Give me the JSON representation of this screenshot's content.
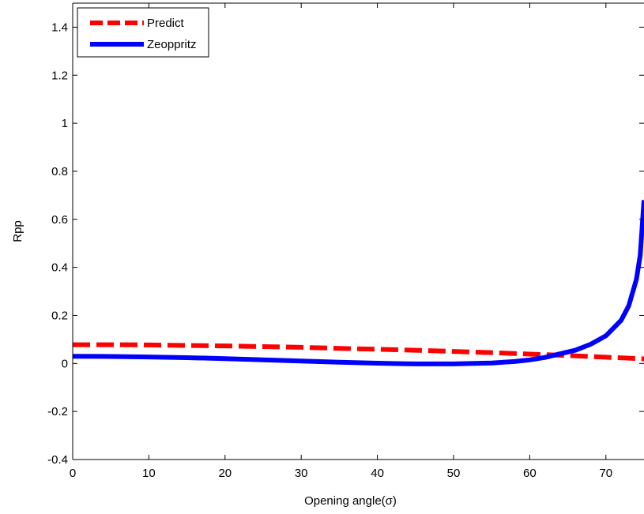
{
  "chart_data": {
    "type": "line",
    "title": "",
    "xlabel": "Opening angle(σ)",
    "ylabel": "Rpp",
    "xlim": [
      0,
      75
    ],
    "ylim": [
      -0.4,
      1.5
    ],
    "xticks": [
      0,
      10,
      20,
      30,
      40,
      50,
      60,
      70
    ],
    "yticks": [
      -0.4,
      -0.2,
      0,
      0.2,
      0.4,
      0.6,
      0.8,
      1,
      1.2,
      1.4
    ],
    "xtick_labels": [
      "0",
      "10",
      "20",
      "30",
      "40",
      "50",
      "60",
      "70"
    ],
    "ytick_labels": [
      "-0.4",
      "-0.2",
      "0",
      "0.2",
      "0.4",
      "0.6",
      "0.8",
      "1",
      "1.2",
      "1.4"
    ],
    "grid": false,
    "legend_position": "top-left",
    "series": [
      {
        "name": "Predict",
        "color": "#ff0000",
        "style": "dashed",
        "x": [
          0,
          5,
          10,
          15,
          20,
          25,
          30,
          35,
          40,
          45,
          50,
          55,
          60,
          65,
          70,
          75
        ],
        "y": [
          0.078,
          0.078,
          0.077,
          0.075,
          0.073,
          0.07,
          0.067,
          0.063,
          0.059,
          0.055,
          0.05,
          0.045,
          0.039,
          0.033,
          0.026,
          0.019
        ]
      },
      {
        "name": "Zeoppritz",
        "color": "#0000ff",
        "style": "solid",
        "x": [
          0,
          5,
          10,
          15,
          20,
          25,
          30,
          35,
          40,
          45,
          50,
          55,
          58,
          60,
          62,
          64,
          66,
          68,
          70,
          72,
          73,
          74,
          74.5,
          75
        ],
        "y": [
          0.03,
          0.029,
          0.027,
          0.024,
          0.02,
          0.015,
          0.01,
          0.005,
          0.001,
          -0.002,
          -0.002,
          0.002,
          0.008,
          0.015,
          0.025,
          0.04,
          0.055,
          0.08,
          0.115,
          0.18,
          0.24,
          0.35,
          0.45,
          0.68
        ]
      }
    ]
  }
}
